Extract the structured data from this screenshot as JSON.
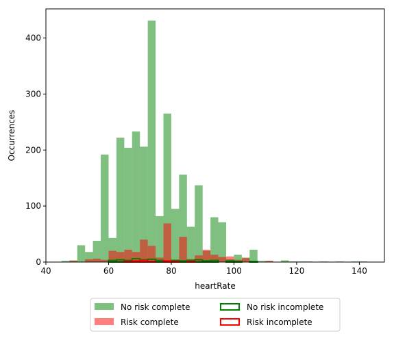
{
  "chart_data": {
    "type": "bar",
    "xlabel": "heartRate",
    "ylabel": "Occurrences",
    "xlim": [
      40,
      148
    ],
    "ylim": [
      0,
      452
    ],
    "xticks": [
      40,
      60,
      80,
      100,
      120,
      140
    ],
    "yticks": [
      0,
      100,
      200,
      300,
      400
    ],
    "grid": false,
    "legend_position": "bottom",
    "bin_width": 2.5,
    "series": [
      {
        "name": "No risk complete",
        "style": "filled",
        "color": "#008000",
        "opacity": 0.5,
        "bins": [
          {
            "x": 45,
            "v": 2
          },
          {
            "x": 47.5,
            "v": 3
          },
          {
            "x": 50,
            "v": 30
          },
          {
            "x": 52.5,
            "v": 18
          },
          {
            "x": 55,
            "v": 38
          },
          {
            "x": 57.5,
            "v": 192
          },
          {
            "x": 60,
            "v": 43
          },
          {
            "x": 62.5,
            "v": 222
          },
          {
            "x": 65,
            "v": 204
          },
          {
            "x": 67.5,
            "v": 233
          },
          {
            "x": 70,
            "v": 206
          },
          {
            "x": 72.5,
            "v": 431
          },
          {
            "x": 75,
            "v": 82
          },
          {
            "x": 77.5,
            "v": 265
          },
          {
            "x": 80,
            "v": 95
          },
          {
            "x": 82.5,
            "v": 156
          },
          {
            "x": 85,
            "v": 63
          },
          {
            "x": 87.5,
            "v": 137
          },
          {
            "x": 90,
            "v": 20
          },
          {
            "x": 92.5,
            "v": 80
          },
          {
            "x": 95,
            "v": 71
          },
          {
            "x": 97.5,
            "v": 5
          },
          {
            "x": 100,
            "v": 13
          },
          {
            "x": 102.5,
            "v": 8
          },
          {
            "x": 105,
            "v": 22
          },
          {
            "x": 107.5,
            "v": 2
          },
          {
            "x": 110,
            "v": 2
          },
          {
            "x": 115,
            "v": 3
          },
          {
            "x": 117.5,
            "v": 1
          },
          {
            "x": 120,
            "v": 1
          },
          {
            "x": 122.5,
            "v": 1
          },
          {
            "x": 127.5,
            "v": 1
          },
          {
            "x": 132.5,
            "v": 1
          },
          {
            "x": 137.5,
            "v": 1
          },
          {
            "x": 140,
            "v": 1
          }
        ]
      },
      {
        "name": "Risk complete",
        "style": "filled",
        "color": "#ff0000",
        "opacity": 0.5,
        "bins": [
          {
            "x": 47.5,
            "v": 2
          },
          {
            "x": 52.5,
            "v": 5
          },
          {
            "x": 55,
            "v": 6
          },
          {
            "x": 57.5,
            "v": 4
          },
          {
            "x": 60,
            "v": 20
          },
          {
            "x": 62.5,
            "v": 18
          },
          {
            "x": 65,
            "v": 22
          },
          {
            "x": 67.5,
            "v": 18
          },
          {
            "x": 70,
            "v": 40
          },
          {
            "x": 72.5,
            "v": 29
          },
          {
            "x": 75,
            "v": 8
          },
          {
            "x": 77.5,
            "v": 69
          },
          {
            "x": 80,
            "v": 4
          },
          {
            "x": 82.5,
            "v": 45
          },
          {
            "x": 85,
            "v": 5
          },
          {
            "x": 87.5,
            "v": 12
          },
          {
            "x": 90,
            "v": 22
          },
          {
            "x": 92.5,
            "v": 13
          },
          {
            "x": 95,
            "v": 9
          },
          {
            "x": 97.5,
            "v": 10
          },
          {
            "x": 100,
            "v": 4
          },
          {
            "x": 102.5,
            "v": 7
          },
          {
            "x": 105,
            "v": 2
          },
          {
            "x": 110,
            "v": 2
          }
        ]
      },
      {
        "name": "No risk incomplete",
        "style": "step",
        "color": "#008000",
        "bins": [
          {
            "x": 60,
            "v": 3
          },
          {
            "x": 62.5,
            "v": 4
          },
          {
            "x": 65,
            "v": 3
          },
          {
            "x": 67.5,
            "v": 6
          },
          {
            "x": 70,
            "v": 4
          },
          {
            "x": 72.5,
            "v": 5
          },
          {
            "x": 75,
            "v": 3
          },
          {
            "x": 77.5,
            "v": 2
          },
          {
            "x": 80,
            "v": 3
          },
          {
            "x": 82.5,
            "v": 2
          },
          {
            "x": 85,
            "v": 3
          },
          {
            "x": 87.5,
            "v": 4
          },
          {
            "x": 90,
            "v": 2
          },
          {
            "x": 92.5,
            "v": 3
          },
          {
            "x": 97.5,
            "v": 2
          },
          {
            "x": 100,
            "v": 1
          },
          {
            "x": 105,
            "v": 1
          }
        ]
      },
      {
        "name": "Risk incomplete",
        "style": "step",
        "color": "#ff0000",
        "bins": [
          {
            "x": 65,
            "v": 1
          },
          {
            "x": 67.5,
            "v": 2
          },
          {
            "x": 70,
            "v": 3
          },
          {
            "x": 72.5,
            "v": 1
          },
          {
            "x": 77.5,
            "v": 2
          },
          {
            "x": 80,
            "v": 1
          },
          {
            "x": 85,
            "v": 1
          }
        ]
      }
    ]
  }
}
